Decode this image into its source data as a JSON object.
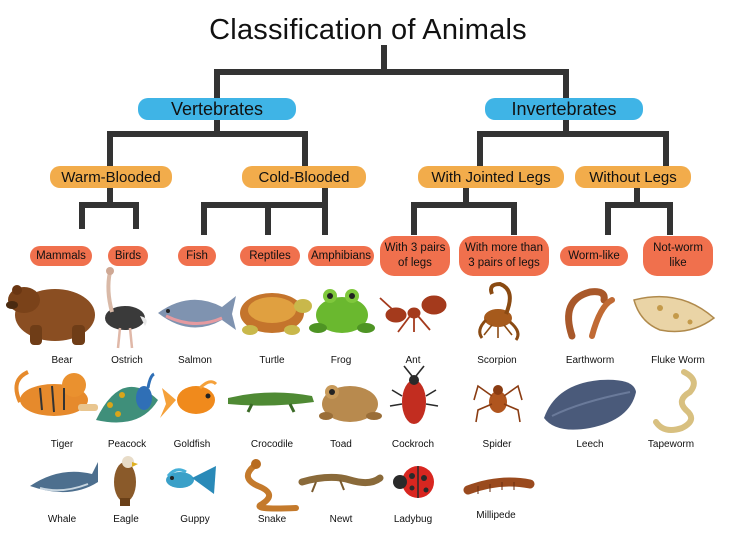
{
  "title": "Classification of Animals",
  "colors": {
    "connector": "#333333",
    "vertebrate_box": "#3fb4e6",
    "category_box": "#f2ac4b",
    "group_box": "#f0704d"
  },
  "vertebrates": {
    "label": "Vertebrates",
    "warm_blooded": "Warm-Blooded",
    "cold_blooded": "Cold-Blooded",
    "groups": {
      "mammals": "Mammals",
      "birds": "Birds",
      "fish": "Fish",
      "reptiles": "Reptiles",
      "amphibians": "Amphibians"
    }
  },
  "invertebrates": {
    "label": "Invertebrates",
    "with_jointed_legs": "With Jointed Legs",
    "without_legs": "Without Legs",
    "groups": {
      "three_pairs": "With 3 pairs of legs",
      "more_than_three": "With more than 3 pairs of legs",
      "worm_like": "Worm-like",
      "not_worm_like": "Not-worm like"
    }
  },
  "animals": {
    "bear": "Bear",
    "ostrich": "Ostrich",
    "salmon": "Salmon",
    "turtle": "Turtle",
    "frog": "Frog",
    "ant": "Ant",
    "scorpion": "Scorpion",
    "earthworm": "Earthworm",
    "fluke_worm": "Fluke Worm",
    "tiger": "Tiger",
    "peacock": "Peacock",
    "goldfish": "Goldfish",
    "crocodile": "Crocodile",
    "toad": "Toad",
    "cockroch": "Cockroch",
    "spider": "Spider",
    "leech": "Leech",
    "tapeworm": "Tapeworm",
    "whale": "Whale",
    "eagle": "Eagle",
    "guppy": "Guppy",
    "snake": "Snake",
    "newt": "Newt",
    "ladybug": "Ladybug",
    "millipede": "Millipede"
  }
}
